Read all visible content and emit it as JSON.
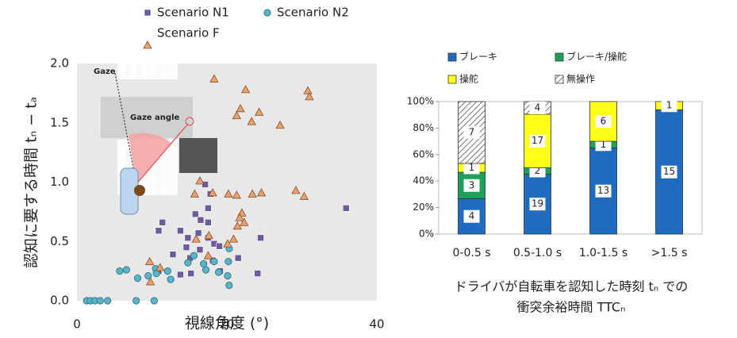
{
  "chart_data": [
    {
      "type": "scatter",
      "xlabel": "視線角度 (°)",
      "ylabel": "認知に要する時間 tₙ − tₐ",
      "xlim": [
        0,
        40
      ],
      "xticks": [
        0,
        20,
        40
      ],
      "ylim": [
        0,
        2.0
      ],
      "yticks": [
        {
          "value": 0,
          "label": "0.0"
        },
        {
          "value": 0.5,
          "label": "0.5"
        },
        {
          "value": 1.0,
          "label": "1.0"
        },
        {
          "value": 1.5,
          "label": "1.5"
        },
        {
          "value": 2.0,
          "label": "2.0"
        }
      ],
      "annotations": [
        "Gaze",
        "Gaze angle"
      ],
      "series": [
        {
          "name": "Scenario N1",
          "color": "#6b5b9a",
          "marker": "square",
          "x": [
            35.9,
            17.8,
            17.1,
            15.8,
            17.5,
            16.5,
            17.5,
            11.4,
            10.9,
            13.8,
            14.8,
            16.2,
            17.5,
            18.3,
            19.0,
            14.6,
            12.8,
            16.4,
            18.1,
            15.2,
            13.8,
            10.9,
            19.1,
            21.5,
            24.5,
            24.1,
            15.1
          ],
          "values": [
            0.78,
            0.9,
            0.98,
            0.73,
            0.78,
            0.68,
            0.66,
            0.66,
            0.59,
            0.59,
            0.53,
            0.57,
            0.53,
            0.48,
            0.46,
            0.45,
            0.39,
            0.43,
            0.34,
            0.23,
            0.22,
            0.25,
            0.25,
            0.36,
            0.53,
            0.23,
            0.36
          ]
        },
        {
          "name": "Scenario N2",
          "color": "#5ab4c8",
          "marker": "circle",
          "x": [
            1.3,
            1.8,
            2.4,
            3.1,
            4.1,
            7.9,
            10.3,
            5.7,
            6.6,
            8.1,
            10.5,
            12.1,
            12.5,
            9.5,
            10.6,
            14.8,
            15.6,
            17.2,
            18.3,
            18.9,
            20.1,
            20.3,
            20.3,
            20.2,
            16.9
          ],
          "values": [
            0,
            0,
            0,
            0,
            0,
            0,
            0,
            0.25,
            0.26,
            0.19,
            0.27,
            0.25,
            0.18,
            0.21,
            0.23,
            0.32,
            0.38,
            0.26,
            0.33,
            0.24,
            0.21,
            0.13,
            0.44,
            0.33,
            0.31
          ]
        },
        {
          "name": "Scenario F",
          "color": "#e8a070",
          "marker": "triangle",
          "x": [
            18.3,
            22.5,
            21.8,
            21.3,
            23.3,
            24.3,
            27.1,
            30.8,
            31.0,
            29.2,
            30.3,
            24.6,
            23.4,
            21.3,
            20.2,
            18.1,
            15.7,
            16.4,
            22.0,
            21.7,
            22.3,
            21.4,
            17.6,
            20.9,
            20.1,
            15.9,
            17.5,
            9.7,
            11.1,
            9.8
          ],
          "values": [
            1.87,
            1.78,
            1.62,
            1.56,
            1.51,
            1.59,
            1.48,
            1.77,
            1.72,
            0.93,
            0.88,
            0.91,
            0.9,
            0.89,
            0.9,
            0.91,
            0.9,
            1.01,
            0.74,
            0.7,
            0.66,
            0.63,
            0.55,
            0.52,
            0.48,
            0.52,
            0.38,
            0.33,
            0.28,
            0.16
          ]
        }
      ]
    },
    {
      "type": "stacked_bar",
      "stack": "percent",
      "xlabel": [
        "ドライバが自転車を認知した時刻 tₙ での",
        "衝突余裕時間 TTCₙ"
      ],
      "categories": [
        "0-0.5 s",
        "0.5-1.0 s",
        "1.0-1.5 s",
        ">1.5 s"
      ],
      "ylim": [
        0,
        100
      ],
      "yticks": [
        {
          "value": 0,
          "label": "0%"
        },
        {
          "value": 20,
          "label": "20%"
        },
        {
          "value": 40,
          "label": "40%"
        },
        {
          "value": 60,
          "label": "60%"
        },
        {
          "value": 80,
          "label": "80%"
        },
        {
          "value": 100,
          "label": "100%"
        }
      ],
      "series": [
        {
          "name": "ブレーキ",
          "color": "#1f6bbf",
          "values": [
            4,
            19,
            13,
            15
          ]
        },
        {
          "name": "ブレーキ/操舵",
          "color": "#1fa05a",
          "values": [
            3,
            2,
            1,
            0
          ]
        },
        {
          "name": "操舵",
          "color": "#ffff1a",
          "values": [
            1,
            17,
            6,
            1
          ]
        },
        {
          "name": "無操作",
          "color": "#ffffff",
          "pattern": "hatch",
          "values": [
            7,
            4,
            0,
            0
          ]
        }
      ]
    }
  ]
}
